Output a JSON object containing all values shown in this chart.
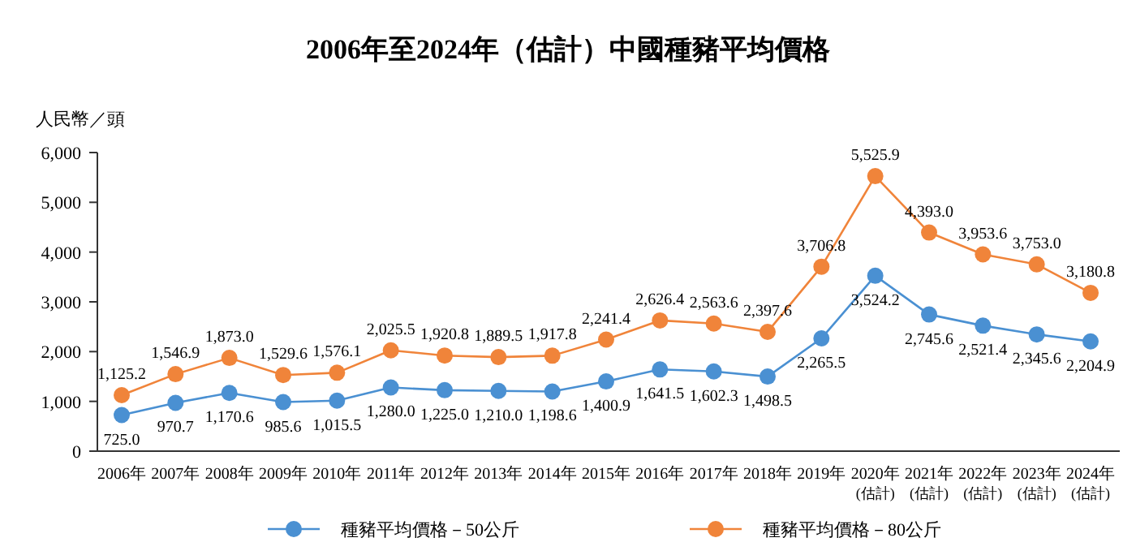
{
  "chart_data": {
    "type": "line",
    "title": "2006年至2024年（估計）中國種豬平均價格",
    "ylabel": "人民幣／頭",
    "categories": [
      "2006年",
      "2007年",
      "2008年",
      "2009年",
      "2010年",
      "2011年",
      "2012年",
      "2013年",
      "2014年",
      "2015年",
      "2016年",
      "2017年",
      "2018年",
      "2019年",
      "2020年\n(估計)",
      "2021年\n(估計)",
      "2022年\n(估計)",
      "2023年\n(估計)",
      "2024年\n(估計)"
    ],
    "series": [
      {
        "name": "種豬平均價格－50公斤",
        "color": "#4a90d2",
        "values": [
          725.0,
          970.7,
          1170.6,
          985.6,
          1015.5,
          1280.0,
          1225.0,
          1210.0,
          1198.6,
          1400.9,
          1641.5,
          1602.3,
          1498.5,
          2265.5,
          3524.2,
          2745.6,
          2521.4,
          2345.6,
          2204.9
        ],
        "value_labels": [
          "725.0",
          "970.7",
          "1,170.6",
          "985.6",
          "1,015.5",
          "1,280.0",
          "1,225.0",
          "1,210.0",
          "1,198.6",
          "1,400.9",
          "1,641.5",
          "1,602.3",
          "1,498.5",
          "2,265.5",
          "3,524.2",
          "2,745.6",
          "2,521.4",
          "2,345.6",
          "2,204.9"
        ]
      },
      {
        "name": "種豬平均價格－80公斤",
        "color": "#f0843a",
        "values": [
          1125.2,
          1546.9,
          1873.0,
          1529.6,
          1576.1,
          2025.5,
          1920.8,
          1889.5,
          1917.8,
          2241.4,
          2626.4,
          2563.6,
          2397.6,
          3706.8,
          5525.9,
          4393.0,
          3953.6,
          3753.0,
          3180.8
        ],
        "value_labels": [
          "1,125.2",
          "1,546.9",
          "1,873.0",
          "1,529.6",
          "1,576.1",
          "2,025.5",
          "1,920.8",
          "1,889.5",
          "1,917.8",
          "2,241.4",
          "2,626.4",
          "2,563.6",
          "2,397.6",
          "3,706.8",
          "5,525.9",
          "4,393.0",
          "3,953.6",
          "3,753.0",
          "3,180.8"
        ]
      }
    ],
    "ylim": [
      0,
      6000
    ],
    "yticks": [
      0,
      {
        "value": 1000,
        "label": "1,000"
      },
      {
        "value": 2000,
        "label": "2,000"
      },
      {
        "value": 3000,
        "label": "3,000"
      },
      {
        "value": 4000,
        "label": "4,000"
      },
      {
        "value": 5000,
        "label": "5,000"
      },
      {
        "value": 6000,
        "label": "6,000"
      }
    ],
    "marker": "circle",
    "line_style": "solid",
    "grid": false,
    "legend": "bottom"
  }
}
